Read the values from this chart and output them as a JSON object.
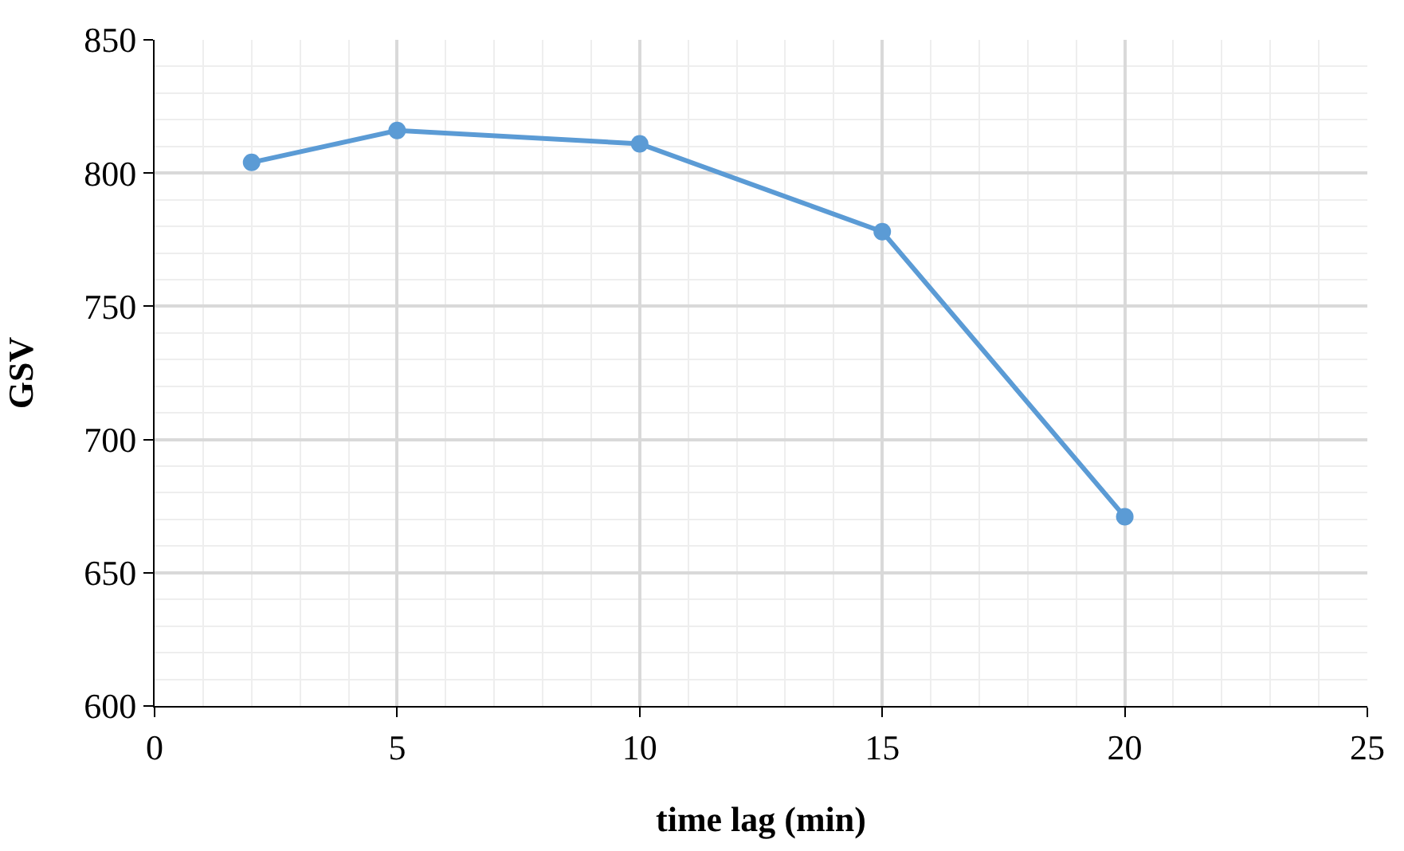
{
  "chart_data": {
    "type": "line",
    "xlabel": "time lag (min)",
    "ylabel": "GSV",
    "x": [
      2,
      5,
      10,
      15,
      20
    ],
    "series": [
      {
        "color": "#5b9bd5",
        "values": [
          804,
          816,
          811,
          778,
          671
        ]
      }
    ],
    "xlim": [
      0,
      25
    ],
    "xticks": [
      0,
      5,
      10,
      15,
      20,
      25
    ],
    "ylim": [
      600,
      850
    ],
    "yticks": [
      600,
      650,
      700,
      750,
      800,
      850
    ],
    "grid": true,
    "marker": "circle",
    "line_style": "solid"
  }
}
